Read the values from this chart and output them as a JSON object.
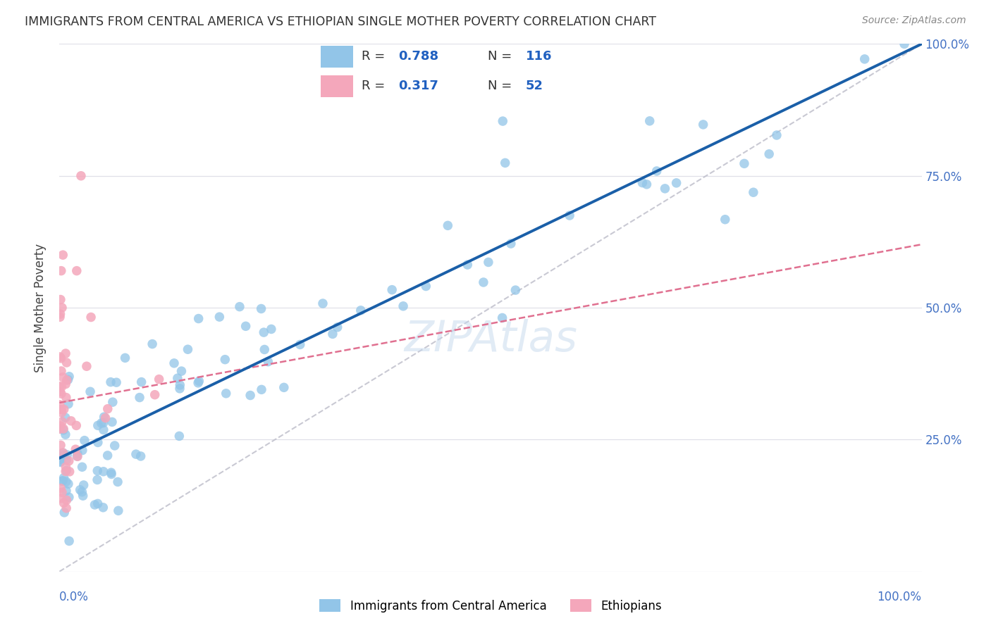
{
  "title": "IMMIGRANTS FROM CENTRAL AMERICA VS ETHIOPIAN SINGLE MOTHER POVERTY CORRELATION CHART",
  "source": "Source: ZipAtlas.com",
  "ylabel": "Single Mother Poverty",
  "legend_label_blue": "Immigrants from Central America",
  "legend_label_pink": "Ethiopians",
  "R_blue": 0.788,
  "N_blue": 116,
  "R_pink": 0.317,
  "N_pink": 52,
  "blue_color": "#92c5e8",
  "pink_color": "#f4a7bb",
  "blue_line_color": "#1a5fa8",
  "pink_line_color": "#e07090",
  "diagonal_color": "#c0c0cc",
  "watermark_color": "#c5d8ed",
  "background_color": "#ffffff",
  "grid_color": "#e0e0e8",
  "title_color": "#333333",
  "right_tick_color": "#4472c4",
  "legend_R_color": "#2060c0",
  "seed_blue": 77,
  "seed_pink": 42
}
